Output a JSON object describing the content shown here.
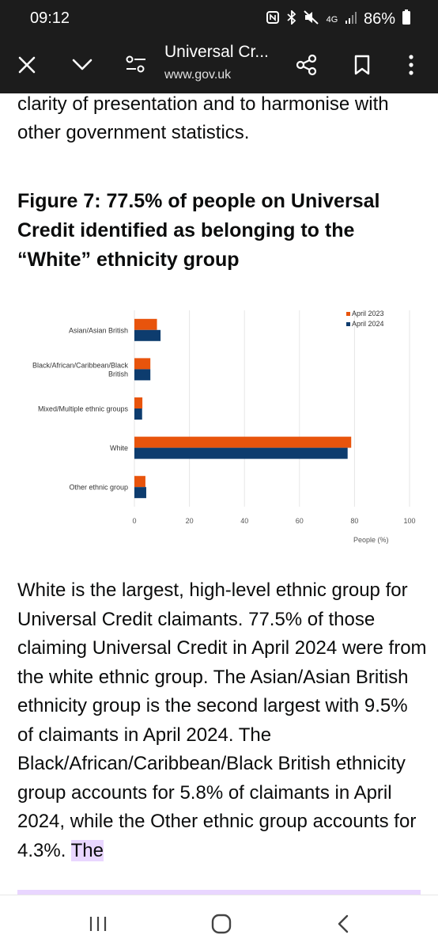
{
  "status_bar": {
    "time": "09:12",
    "network": "4G",
    "battery": "86%",
    "icons": [
      "nfc-icon",
      "bluetooth-icon",
      "mute-icon",
      "signal-icon",
      "battery-icon"
    ]
  },
  "toolbar": {
    "title": "Universal Cr...",
    "url": "www.gov.uk",
    "icons": [
      "close-icon",
      "chevron-down-icon",
      "page-settings-icon",
      "share-icon",
      "bookmark-icon",
      "more-icon"
    ]
  },
  "article": {
    "intro": "clarity of presentation and to harmonise with other government statistics.",
    "figure_title": "Figure 7: 77.5% of people on Universal Credit identified as belonging to the “White” ethnicity group",
    "body": "White is the largest, high-level ethnic group for Universal Credit claimants. 77.5% of those claiming Universal Credit in April 2024 were from the white ethnic group.  The Asian/Asian British ethnicity group is the second largest with 9.5% of claimants in April 2024. The Black/African/Caribbean/Black British ethnicity group accounts for 5.8% of claimants in April 2024, while the Other ethnic group accounts for 4.3%.",
    "body_highlight": "The"
  },
  "chart_data": {
    "type": "bar",
    "orientation": "horizontal",
    "categories": [
      "Asian/Asian British",
      "Black/African/Caribbean/Black British",
      "Mixed/Multiple ethnic groups",
      "White",
      "Other ethnic group"
    ],
    "category_lines": [
      [
        "Asian/Asian British"
      ],
      [
        "Black/African/Caribbean/Black",
        "British"
      ],
      [
        "Mixed/Multiple ethnic groups"
      ],
      [
        "White"
      ],
      [
        "Other ethnic group"
      ]
    ],
    "series": [
      {
        "name": "April 2023",
        "values": [
          8.2,
          5.8,
          2.9,
          78.8,
          4.0
        ],
        "color": "#e8540c"
      },
      {
        "name": "April 2024",
        "values": [
          9.5,
          5.8,
          2.8,
          77.5,
          4.3
        ],
        "color": "#0d3c6e"
      }
    ],
    "xlabel": "People (%)",
    "xlim": [
      0,
      100
    ],
    "xticks": [
      0,
      20,
      40,
      60,
      80,
      100
    ],
    "grid": true,
    "legend": "top-right"
  },
  "nav_bar": {
    "icons": [
      "recent-apps-icon",
      "home-icon",
      "back-icon"
    ]
  }
}
